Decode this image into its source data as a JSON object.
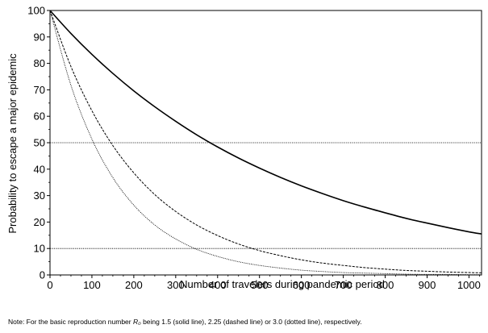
{
  "chart_data": {
    "type": "line",
    "xlabel": "Number of travelers during pandemic period",
    "ylabel": "Probability to escape a major epidemic",
    "xlim": [
      0,
      1030
    ],
    "ylim": [
      0,
      100
    ],
    "xticks": [
      0,
      100,
      200,
      300,
      400,
      500,
      600,
      700,
      800,
      900,
      1000
    ],
    "yticks": [
      0,
      10,
      20,
      30,
      40,
      50,
      60,
      70,
      80,
      90,
      100
    ],
    "grid": false,
    "reference_lines": [
      50,
      10
    ],
    "x": [
      0,
      50,
      100,
      150,
      200,
      250,
      300,
      350,
      400,
      450,
      500,
      550,
      600,
      650,
      700,
      750,
      800,
      850,
      900,
      950,
      1000,
      1030
    ],
    "series": [
      {
        "R0": "1.5",
        "style": "solid",
        "values": [
          100,
          91.3,
          83.4,
          76.2,
          69.6,
          63.6,
          58.1,
          53.0,
          48.4,
          44.2,
          40.4,
          36.9,
          33.7,
          30.8,
          28.1,
          25.7,
          23.5,
          21.4,
          19.6,
          17.9,
          16.3,
          15.5
        ]
      },
      {
        "R0": "2.25",
        "style": "dashed",
        "values": [
          100,
          78.8,
          62.1,
          48.9,
          38.6,
          30.4,
          24.0,
          18.9,
          14.9,
          11.7,
          9.2,
          7.3,
          5.7,
          4.5,
          3.6,
          2.8,
          2.2,
          1.7,
          1.4,
          1.1,
          0.9,
          0.8
        ]
      },
      {
        "R0": "3.0",
        "style": "dotted",
        "values": [
          100,
          71.7,
          51.4,
          36.8,
          26.4,
          18.9,
          13.6,
          9.7,
          7.0,
          5.0,
          3.6,
          2.6,
          1.8,
          1.3,
          0.9,
          0.7,
          0.5,
          0.3,
          0.2,
          0.2,
          0.1,
          0.1
        ]
      }
    ]
  },
  "note": {
    "prefix": "Note: For the basic reproduction number ",
    "symbol": "R₀",
    "suffix": " being 1.5 (solid line), 2.25 (dashed line) or 3.0 (dotted line), respectively."
  }
}
